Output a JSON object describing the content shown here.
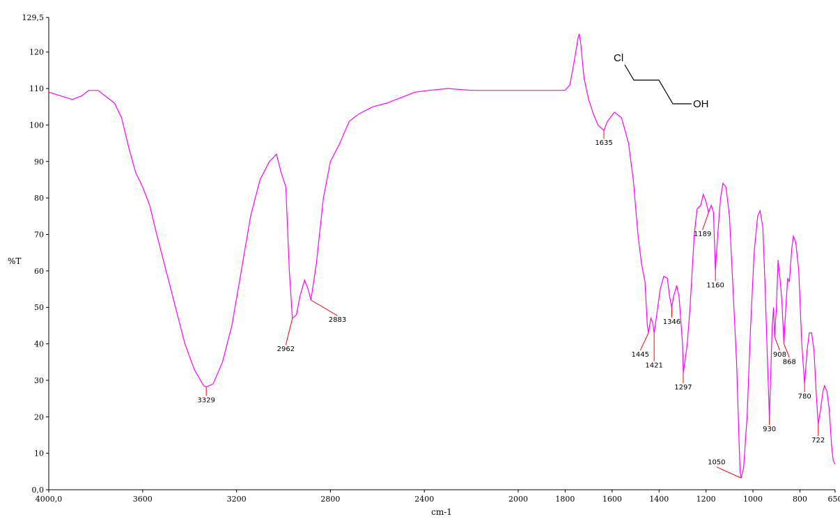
{
  "chart_data": {
    "type": "line",
    "xlabel": "cm-1",
    "ylabel": "%T",
    "xlim": [
      4000,
      650
    ],
    "ylim": [
      0,
      129.5
    ],
    "x_reversed": true,
    "grid": false,
    "line_color": "#ff00ff",
    "annotation_color": "#ff0000",
    "x_ticks": [
      {
        "value": 4000,
        "label": "4000,0"
      },
      {
        "value": 3600,
        "label": "3600"
      },
      {
        "value": 3200,
        "label": "3200"
      },
      {
        "value": 2800,
        "label": "2800"
      },
      {
        "value": 2400,
        "label": "2400"
      },
      {
        "value": 2000,
        "label": "2000"
      },
      {
        "value": 1800,
        "label": "1800"
      },
      {
        "value": 1600,
        "label": "1600"
      },
      {
        "value": 1400,
        "label": "1400"
      },
      {
        "value": 1200,
        "label": "1200"
      },
      {
        "value": 1000,
        "label": "1000"
      },
      {
        "value": 800,
        "label": "800"
      },
      {
        "value": 650,
        "label": "650"
      }
    ],
    "y_ticks": [
      {
        "value": 0,
        "label": "0,0"
      },
      {
        "value": 10,
        "label": "10"
      },
      {
        "value": 20,
        "label": "20"
      },
      {
        "value": 30,
        "label": "30"
      },
      {
        "value": 40,
        "label": "40"
      },
      {
        "value": 50,
        "label": "50"
      },
      {
        "value": 60,
        "label": "60"
      },
      {
        "value": 70,
        "label": "70"
      },
      {
        "value": 80,
        "label": "80"
      },
      {
        "value": 90,
        "label": "90"
      },
      {
        "value": 100,
        "label": "100"
      },
      {
        "value": 110,
        "label": "110"
      },
      {
        "value": 120,
        "label": "120"
      },
      {
        "value": 129.5,
        "label": "129,5"
      }
    ],
    "spectrum": [
      [
        4000,
        109
      ],
      [
        3950,
        108
      ],
      [
        3900,
        107
      ],
      [
        3860,
        108
      ],
      [
        3830,
        109.5
      ],
      [
        3790,
        109.5
      ],
      [
        3760,
        108
      ],
      [
        3720,
        106
      ],
      [
        3690,
        102
      ],
      [
        3660,
        94
      ],
      [
        3630,
        87
      ],
      [
        3600,
        83
      ],
      [
        3570,
        78
      ],
      [
        3540,
        70
      ],
      [
        3500,
        60
      ],
      [
        3460,
        50
      ],
      [
        3420,
        40
      ],
      [
        3380,
        33
      ],
      [
        3340,
        28.5
      ],
      [
        3329,
        28.2
      ],
      [
        3300,
        29
      ],
      [
        3260,
        35
      ],
      [
        3220,
        45
      ],
      [
        3180,
        60
      ],
      [
        3140,
        75
      ],
      [
        3100,
        85
      ],
      [
        3060,
        90
      ],
      [
        3030,
        92
      ],
      [
        3010,
        87
      ],
      [
        2990,
        83
      ],
      [
        2975,
        60
      ],
      [
        2962,
        47
      ],
      [
        2945,
        48
      ],
      [
        2930,
        53
      ],
      [
        2910,
        57.5
      ],
      [
        2895,
        55
      ],
      [
        2883,
        52
      ],
      [
        2860,
        62
      ],
      [
        2830,
        80
      ],
      [
        2800,
        90
      ],
      [
        2760,
        95
      ],
      [
        2720,
        101
      ],
      [
        2680,
        103
      ],
      [
        2620,
        105
      ],
      [
        2560,
        106
      ],
      [
        2500,
        107.5
      ],
      [
        2440,
        109
      ],
      [
        2380,
        109.5
      ],
      [
        2300,
        110
      ],
      [
        2200,
        109.5
      ],
      [
        2100,
        109.5
      ],
      [
        2000,
        109.5
      ],
      [
        1900,
        109.5
      ],
      [
        1800,
        109.5
      ],
      [
        1780,
        111
      ],
      [
        1760,
        118
      ],
      [
        1745,
        124
      ],
      [
        1740,
        125
      ],
      [
        1733,
        122
      ],
      [
        1720,
        113
      ],
      [
        1700,
        107
      ],
      [
        1680,
        103
      ],
      [
        1660,
        100
      ],
      [
        1635,
        98.5
      ],
      [
        1620,
        101
      ],
      [
        1590,
        103.5
      ],
      [
        1560,
        102
      ],
      [
        1530,
        95
      ],
      [
        1510,
        85
      ],
      [
        1490,
        70
      ],
      [
        1475,
        62
      ],
      [
        1460,
        57
      ],
      [
        1450,
        45
      ],
      [
        1445,
        43
      ],
      [
        1435,
        47
      ],
      [
        1428,
        46
      ],
      [
        1421,
        43
      ],
      [
        1410,
        48
      ],
      [
        1395,
        55
      ],
      [
        1380,
        58.5
      ],
      [
        1365,
        58
      ],
      [
        1355,
        53
      ],
      [
        1346,
        50
      ],
      [
        1338,
        53
      ],
      [
        1325,
        56
      ],
      [
        1315,
        53
      ],
      [
        1300,
        40
      ],
      [
        1297,
        32
      ],
      [
        1290,
        35
      ],
      [
        1280,
        40
      ],
      [
        1268,
        50
      ],
      [
        1250,
        70
      ],
      [
        1238,
        77
      ],
      [
        1222,
        78
      ],
      [
        1212,
        81
      ],
      [
        1200,
        79
      ],
      [
        1189,
        76
      ],
      [
        1178,
        78
      ],
      [
        1168,
        76
      ],
      [
        1160,
        60
      ],
      [
        1150,
        70
      ],
      [
        1138,
        80
      ],
      [
        1128,
        84
      ],
      [
        1115,
        83
      ],
      [
        1100,
        75
      ],
      [
        1085,
        55
      ],
      [
        1070,
        35
      ],
      [
        1060,
        15
      ],
      [
        1055,
        5
      ],
      [
        1050,
        3.2
      ],
      [
        1040,
        6
      ],
      [
        1025,
        20
      ],
      [
        1010,
        45
      ],
      [
        995,
        65
      ],
      [
        980,
        75
      ],
      [
        970,
        76.5
      ],
      [
        958,
        72
      ],
      [
        948,
        55
      ],
      [
        938,
        35
      ],
      [
        930,
        20
      ],
      [
        925,
        30
      ],
      [
        918,
        45
      ],
      [
        912,
        50
      ],
      [
        908,
        42
      ],
      [
        900,
        50
      ],
      [
        893,
        63
      ],
      [
        885,
        58
      ],
      [
        877,
        52
      ],
      [
        868,
        40
      ],
      [
        860,
        50
      ],
      [
        852,
        58
      ],
      [
        845,
        57
      ],
      [
        835,
        66
      ],
      [
        828,
        69.5
      ],
      [
        818,
        68
      ],
      [
        805,
        60
      ],
      [
        792,
        40
      ],
      [
        780,
        29
      ],
      [
        770,
        38
      ],
      [
        760,
        43
      ],
      [
        750,
        43
      ],
      [
        740,
        38
      ],
      [
        730,
        26
      ],
      [
        722,
        18
      ],
      [
        712,
        22
      ],
      [
        702,
        27
      ],
      [
        695,
        28.5
      ],
      [
        685,
        27
      ],
      [
        675,
        22
      ],
      [
        665,
        12
      ],
      [
        658,
        8
      ],
      [
        650,
        7
      ]
    ],
    "peaks": [
      {
        "label": "3329",
        "x": 3329,
        "y": 28.2,
        "label_x": 3329,
        "label_y": 24
      },
      {
        "label": "2962",
        "x": 2962,
        "y": 47,
        "label_x": 2990,
        "label_y": 38
      },
      {
        "label": "2883",
        "x": 2883,
        "y": 52,
        "label_x": 2770,
        "label_y": 46
      },
      {
        "label": "1635",
        "x": 1635,
        "y": 98.5,
        "label_x": 1635,
        "label_y": 94.5
      },
      {
        "label": "1445",
        "x": 1445,
        "y": 43,
        "label_x": 1480,
        "label_y": 36.5
      },
      {
        "label": "1421",
        "x": 1421,
        "y": 43,
        "label_x": 1421,
        "label_y": 33.5
      },
      {
        "label": "1346",
        "x": 1346,
        "y": 50,
        "label_x": 1346,
        "label_y": 45.5
      },
      {
        "label": "1297",
        "x": 1297,
        "y": 32,
        "label_x": 1297,
        "label_y": 27.5
      },
      {
        "label": "1189",
        "x": 1189,
        "y": 76,
        "label_x": 1215,
        "label_y": 69.5
      },
      {
        "label": "1160",
        "x": 1160,
        "y": 60,
        "label_x": 1160,
        "label_y": 55.5
      },
      {
        "label": "1050",
        "x": 1050,
        "y": 3.2,
        "label_x": 1155,
        "label_y": 7
      },
      {
        "label": "930",
        "x": 930,
        "y": 20,
        "label_x": 930,
        "label_y": 16
      },
      {
        "label": "908",
        "x": 908,
        "y": 42,
        "label_x": 886,
        "label_y": 36.5
      },
      {
        "label": "868",
        "x": 868,
        "y": 40,
        "label_x": 845,
        "label_y": 34.5
      },
      {
        "label": "780",
        "x": 780,
        "y": 29,
        "label_x": 780,
        "label_y": 25
      },
      {
        "label": "722",
        "x": 722,
        "y": 18,
        "label_x": 722,
        "label_y": 13
      }
    ]
  },
  "molecule": {
    "atom_left": "Cl",
    "atom_right": "OH"
  }
}
